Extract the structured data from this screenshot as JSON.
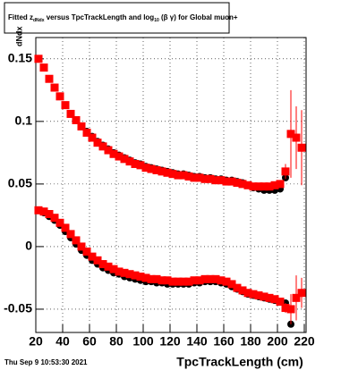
{
  "chart_data": {
    "type": "scatter",
    "title_parts": [
      "Fitted  z",
      "dNdx",
      " versus TpcTrackLength and log",
      "10",
      " (β  γ) for Global muon+"
    ],
    "ylabel": "dNdx",
    "xlabel": "TpcTrackLength (cm)",
    "footer": "Thu Sep  9 10:53:30 2021",
    "xlim": [
      20,
      220
    ],
    "xticks": [
      20,
      40,
      60,
      80,
      100,
      120,
      140,
      160,
      180,
      200,
      220
    ],
    "ylim": [
      -0.0686,
      0.167
    ],
    "yticks": [
      -0.05,
      0,
      0.05,
      0.1,
      0.15
    ],
    "grid": true,
    "series": [
      {
        "color": "#000000",
        "marker": "circle",
        "x": [
          22,
          26,
          30,
          34,
          38,
          42,
          46,
          50,
          54,
          58,
          62,
          66,
          70,
          74,
          78,
          82,
          86,
          90,
          94,
          98,
          102,
          106,
          110,
          114,
          118,
          122,
          126,
          130,
          134,
          138,
          142,
          146,
          150,
          154,
          158,
          162,
          166,
          170,
          174,
          178,
          182,
          186,
          190,
          194,
          198,
          202,
          206
        ],
        "values": [
          0.15,
          0.143,
          0.134,
          0.127,
          0.12,
          0.113,
          0.106,
          0.101,
          0.096,
          0.092,
          0.088,
          0.084,
          0.081,
          0.078,
          0.075,
          0.073,
          0.071,
          0.069,
          0.067,
          0.066,
          0.064,
          0.063,
          0.062,
          0.061,
          0.06,
          0.059,
          0.058,
          0.058,
          0.057,
          0.056,
          0.056,
          0.055,
          0.055,
          0.054,
          0.054,
          0.053,
          0.053,
          0.052,
          0.051,
          0.049,
          0.047,
          0.046,
          0.045,
          0.045,
          0.045,
          0.046,
          0.055
        ]
      },
      {
        "color": "#000000",
        "marker": "circle",
        "x": [
          22,
          26,
          30,
          34,
          38,
          42,
          46,
          50,
          54,
          58,
          62,
          66,
          70,
          74,
          78,
          82,
          86,
          90,
          94,
          98,
          102,
          106,
          110,
          114,
          118,
          122,
          126,
          130,
          134,
          138,
          142,
          146,
          150,
          154,
          158,
          162,
          166,
          170,
          174,
          178,
          182,
          186,
          190,
          194,
          198,
          202,
          206,
          210
        ],
        "values": [
          0.029,
          0.027,
          0.024,
          0.021,
          0.017,
          0.012,
          0.007,
          0.002,
          -0.003,
          -0.007,
          -0.011,
          -0.014,
          -0.017,
          -0.019,
          -0.021,
          -0.022,
          -0.024,
          -0.025,
          -0.026,
          -0.027,
          -0.028,
          -0.028,
          -0.029,
          -0.029,
          -0.03,
          -0.03,
          -0.03,
          -0.03,
          -0.03,
          -0.029,
          -0.029,
          -0.028,
          -0.028,
          -0.028,
          -0.029,
          -0.03,
          -0.032,
          -0.034,
          -0.036,
          -0.038,
          -0.039,
          -0.04,
          -0.041,
          -0.042,
          -0.043,
          -0.044,
          -0.045,
          -0.062
        ]
      },
      {
        "color": "#ff0000",
        "marker": "square",
        "x": [
          22,
          26,
          30,
          34,
          38,
          42,
          46,
          50,
          54,
          58,
          62,
          66,
          70,
          74,
          78,
          82,
          86,
          90,
          94,
          98,
          102,
          106,
          110,
          114,
          118,
          122,
          126,
          130,
          134,
          138,
          142,
          146,
          150,
          154,
          158,
          162,
          166,
          170,
          174,
          178,
          182,
          186,
          190,
          194,
          198,
          202,
          206,
          210,
          214,
          218
        ],
        "values": [
          0.15,
          0.143,
          0.134,
          0.127,
          0.12,
          0.113,
          0.106,
          0.101,
          0.096,
          0.091,
          0.087,
          0.083,
          0.08,
          0.077,
          0.074,
          0.072,
          0.07,
          0.068,
          0.066,
          0.065,
          0.063,
          0.062,
          0.061,
          0.06,
          0.059,
          0.058,
          0.057,
          0.057,
          0.056,
          0.055,
          0.055,
          0.054,
          0.054,
          0.053,
          0.053,
          0.052,
          0.052,
          0.051,
          0.05,
          0.049,
          0.048,
          0.048,
          0.048,
          0.048,
          0.049,
          0.05,
          0.06,
          0.09,
          0.087,
          0.079
        ],
        "errors": [
          0,
          0,
          0,
          0,
          0,
          0,
          0,
          0,
          0,
          0,
          0,
          0,
          0,
          0,
          0,
          0,
          0,
          0,
          0,
          0,
          0,
          0,
          0,
          0,
          0,
          0,
          0,
          0,
          0,
          0,
          0,
          0,
          0,
          0,
          0,
          0,
          0,
          0,
          0,
          0,
          0,
          0,
          0,
          0,
          0,
          0,
          0.006,
          0.035,
          0.025,
          0.03
        ]
      },
      {
        "color": "#ff0000",
        "marker": "square",
        "x": [
          22,
          26,
          30,
          34,
          38,
          42,
          46,
          50,
          54,
          58,
          62,
          66,
          70,
          74,
          78,
          82,
          86,
          90,
          94,
          98,
          102,
          106,
          110,
          114,
          118,
          122,
          126,
          130,
          134,
          138,
          142,
          146,
          150,
          154,
          158,
          162,
          166,
          170,
          174,
          178,
          182,
          186,
          190,
          194,
          198,
          202,
          206,
          210,
          214,
          218
        ],
        "values": [
          0.029,
          0.028,
          0.026,
          0.023,
          0.019,
          0.015,
          0.01,
          0.005,
          0.0,
          -0.004,
          -0.008,
          -0.011,
          -0.014,
          -0.016,
          -0.018,
          -0.02,
          -0.021,
          -0.022,
          -0.023,
          -0.024,
          -0.025,
          -0.026,
          -0.026,
          -0.027,
          -0.027,
          -0.028,
          -0.028,
          -0.028,
          -0.028,
          -0.027,
          -0.027,
          -0.026,
          -0.026,
          -0.026,
          -0.027,
          -0.028,
          -0.03,
          -0.033,
          -0.035,
          -0.037,
          -0.038,
          -0.039,
          -0.04,
          -0.041,
          -0.042,
          -0.044,
          -0.049,
          -0.05,
          -0.041,
          -0.037
        ],
        "errors": [
          0,
          0,
          0,
          0,
          0,
          0,
          0,
          0,
          0,
          0,
          0,
          0,
          0,
          0,
          0,
          0,
          0,
          0,
          0,
          0,
          0,
          0,
          0,
          0,
          0,
          0,
          0,
          0,
          0,
          0,
          0,
          0,
          0,
          0,
          0,
          0,
          0,
          0,
          0,
          0,
          0,
          0,
          0,
          0,
          0,
          0,
          0.004,
          0.012,
          0.018,
          0.012
        ]
      }
    ]
  }
}
